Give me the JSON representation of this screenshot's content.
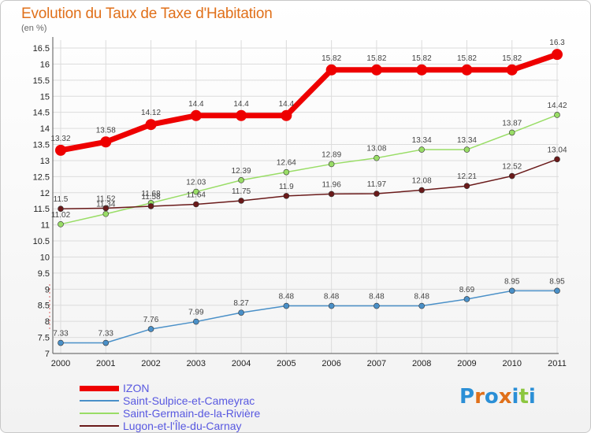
{
  "title": "Evolution du Taux de Taxe d'Habitation",
  "subtitle": "(en %)",
  "logo": {
    "letters": [
      "P",
      "r",
      "o",
      "x",
      "i",
      "t",
      "i"
    ],
    "colors": [
      "#2b8fd6",
      "#e0701a",
      "#2b8fd6",
      "#e0701a",
      "#2b8fd6",
      "#8cc63f",
      "#2b8fd6"
    ]
  },
  "chart_data": {
    "type": "line",
    "x": [
      "2000",
      "2001",
      "2002",
      "2003",
      "2004",
      "2005",
      "2006",
      "2007",
      "2008",
      "2009",
      "2010",
      "2011"
    ],
    "ylim": [
      7,
      16.5
    ],
    "yticks": [
      "7",
      "7.5",
      "8",
      "8.5",
      "9",
      "9.5",
      "10",
      "10.5",
      "11",
      "11.5",
      "12",
      "12.5",
      "13",
      "13.5",
      "14",
      "14.5",
      "15",
      "15.5",
      "16",
      "16.5"
    ],
    "grid": true,
    "legend_position": "bottom-left",
    "series": [
      {
        "name": "IZON",
        "color": "#ee0000",
        "values": [
          13.32,
          13.58,
          14.12,
          14.4,
          14.4,
          14.4,
          15.82,
          15.82,
          15.82,
          15.82,
          15.82,
          16.3
        ],
        "labels": [
          "13.32",
          "13.58",
          "14.12",
          "14.4",
          "14.4",
          "14.4",
          "15.82",
          "15.82",
          "15.82",
          "15.82",
          "15.82",
          "16.3"
        ]
      },
      {
        "name": "Saint-Sulpice-et-Cameyrac",
        "color": "#4a90c8",
        "values": [
          7.33,
          7.33,
          7.76,
          7.99,
          8.27,
          8.48,
          8.48,
          8.48,
          8.48,
          8.69,
          8.95,
          8.95
        ],
        "labels": [
          "7.33",
          "7.33",
          "7.76",
          "7.99",
          "8.27",
          "8.48",
          "8.48",
          "8.48",
          "8.48",
          "8.69",
          "8.95",
          "8.95"
        ]
      },
      {
        "name": "Saint-Germain-de-la-Rivière",
        "color": "#99dd66",
        "values": [
          11.02,
          11.34,
          11.68,
          12.03,
          12.39,
          12.64,
          12.89,
          13.08,
          13.34,
          13.34,
          13.87,
          14.42
        ],
        "labels": [
          "11.02",
          "11.34",
          "11.68",
          "12.03",
          "12.39",
          "12.64",
          "12.89",
          "13.08",
          "13.34",
          "13.34",
          "13.87",
          "14.42"
        ]
      },
      {
        "name": "Lugon-et-l'Île-du-Carnay",
        "color": "#6a1a1a",
        "values": [
          11.5,
          11.52,
          11.58,
          11.64,
          11.75,
          11.9,
          11.96,
          11.97,
          12.08,
          12.21,
          12.52,
          13.04
        ],
        "labels": [
          "11.5",
          "11.52",
          "11.58",
          "11.64",
          "11.75",
          "11.9",
          "11.96",
          "11.97",
          "12.08",
          "12.21",
          "12.52",
          "13.04"
        ]
      }
    ]
  }
}
